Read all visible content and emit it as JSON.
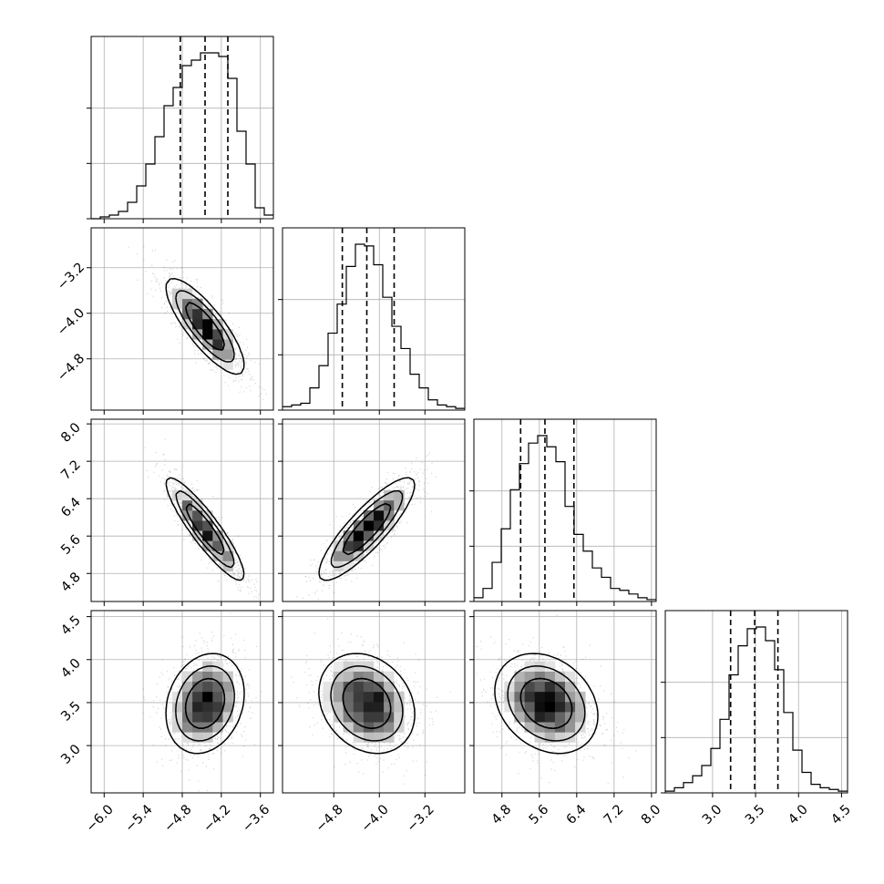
{
  "chart_data": {
    "type": "corner",
    "grid": true,
    "parameters": [
      {
        "ticks": [
          -6.0,
          -5.4,
          -4.8,
          -4.2,
          -3.6
        ],
        "tick_labels": [
          "−6.0",
          "−5.4",
          "−4.8",
          "−4.2",
          "−3.6"
        ],
        "range": [
          -6.2,
          -3.4
        ],
        "quantiles": [
          -4.83,
          -4.45,
          -4.1
        ]
      },
      {
        "ticks": [
          -4.8,
          -4.0,
          -3.2
        ],
        "tick_labels": [
          "−4.8",
          "−4.0",
          "−3.2"
        ],
        "range": [
          -5.7,
          -2.5
        ],
        "quantiles": [
          -4.65,
          -4.22,
          -3.74
        ]
      },
      {
        "ticks": [
          4.8,
          5.6,
          6.4,
          7.2,
          8.0
        ],
        "tick_labels": [
          "4.8",
          "5.6",
          "6.4",
          "7.2",
          "8.0"
        ],
        "range": [
          4.2,
          8.1
        ],
        "quantiles": [
          5.2,
          5.72,
          6.34
        ]
      },
      {
        "ticks": [
          3.0,
          3.5,
          4.0,
          4.5
        ],
        "tick_labels": [
          "3.0",
          "3.5",
          "4.0",
          "4.5"
        ],
        "range": [
          2.45,
          4.57
        ],
        "quantiles": [
          3.21,
          3.49,
          3.76
        ]
      }
    ],
    "histograms": [
      {
        "edges_range": [
          -6.2,
          -3.4
        ],
        "counts": [
          0,
          1,
          2,
          4,
          9,
          18,
          30,
          45,
          62,
          72,
          84,
          87,
          91,
          91,
          89,
          77,
          48,
          30,
          6,
          2
        ]
      },
      {
        "edges_range": [
          -5.7,
          -2.5
        ],
        "counts": [
          2,
          3,
          4,
          13,
          26,
          45,
          62,
          84,
          97,
          96,
          85,
          66,
          49,
          36,
          21,
          13,
          6,
          3,
          2,
          1
        ]
      },
      {
        "edges_range": [
          4.2,
          8.1
        ],
        "counts": [
          2,
          7,
          21,
          39,
          60,
          74,
          85,
          89,
          83,
          75,
          51,
          36,
          27,
          18,
          13,
          7,
          6,
          4,
          2,
          1
        ]
      },
      {
        "edges_range": [
          2.45,
          4.57
        ],
        "counts": [
          1,
          3,
          6,
          10,
          16,
          26,
          43,
          69,
          86,
          96,
          97,
          89,
          72,
          47,
          25,
          12,
          5,
          3,
          2,
          1
        ]
      }
    ],
    "joint": [
      {
        "row": 1,
        "col": 0,
        "mean": [
          -4.45,
          -4.23
        ],
        "sd": [
          0.3,
          0.42
        ],
        "corr": -0.82
      },
      {
        "row": 2,
        "col": 0,
        "mean": [
          -4.45,
          5.75
        ],
        "sd": [
          0.3,
          0.55
        ],
        "corr": -0.9
      },
      {
        "row": 2,
        "col": 1,
        "mean": [
          -4.22,
          5.75
        ],
        "sd": [
          0.42,
          0.55
        ],
        "corr": 0.86
      },
      {
        "row": 3,
        "col": 0,
        "mean": [
          -4.45,
          3.49
        ],
        "sd": [
          0.3,
          0.29
        ],
        "corr": 0.2
      },
      {
        "row": 3,
        "col": 1,
        "mean": [
          -4.22,
          3.49
        ],
        "sd": [
          0.42,
          0.29
        ],
        "corr": -0.22
      },
      {
        "row": 3,
        "col": 2,
        "mean": [
          5.75,
          3.49
        ],
        "sd": [
          0.55,
          0.29
        ],
        "corr": -0.25
      }
    ]
  }
}
